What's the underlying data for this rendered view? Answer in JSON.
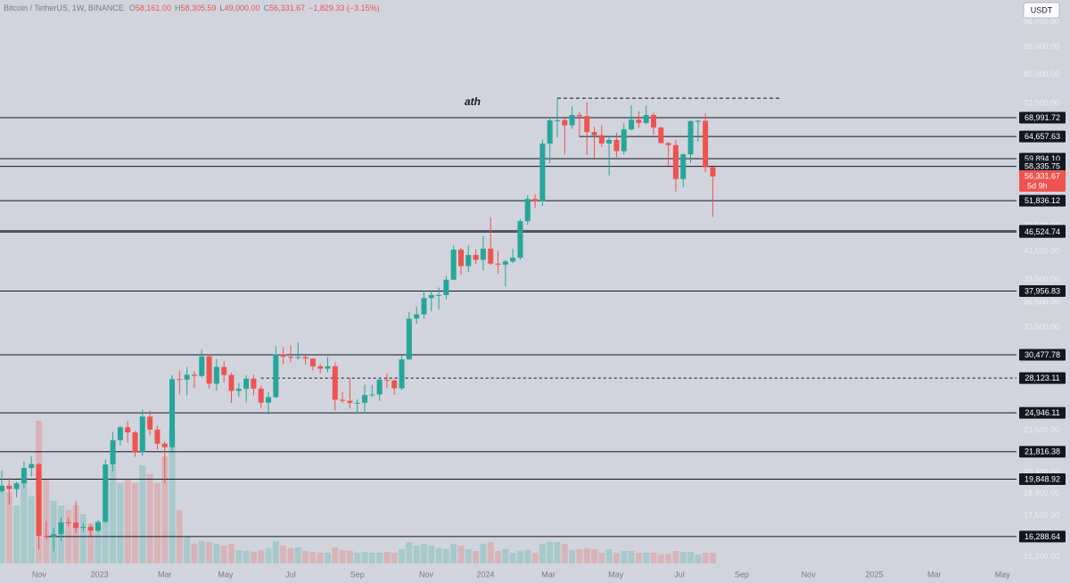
{
  "chart_data": {
    "type": "candlestick",
    "header": {
      "symbol": "Bitcoin / TetherUS, 1W, BINANCE",
      "ohlc": [
        {
          "label": "O",
          "value": "58,161.00"
        },
        {
          "label": "H",
          "value": "58,305.59"
        },
        {
          "label": "L",
          "value": "49,000.00"
        },
        {
          "label": "C",
          "value": "56,331.67"
        }
      ],
      "change": "−1,829.33 (−3.15%)"
    },
    "currency": "USDT",
    "log_scale": true,
    "grid": false,
    "up_color": "#26a69a",
    "down_color": "#ef5350",
    "level_color": "#131722",
    "open": [
      19044,
      19415,
      19185,
      19570,
      20625,
      20905,
      16330,
      16280,
      16425,
      17110,
      17090,
      16780,
      16840,
      16620,
      17130,
      20880,
      22710,
      23740,
      23320,
      21780,
      24630,
      23550,
      22430,
      22160,
      28030,
      27980,
      28450,
      28330,
      30300,
      27590,
      29230,
      28430,
      26910,
      27100,
      28070,
      27120,
      25840,
      26340,
      30530,
      30270,
      30170,
      30230,
      30080,
      29280,
      29050,
      29290,
      26100,
      26000,
      25830,
      25830,
      26530,
      26580,
      27970,
      27900,
      27150,
      29990,
      34520,
      35030,
      37060,
      37440,
      37450,
      39470,
      43790,
      41370,
      42990,
      42280,
      43920,
      41730,
      41580,
      42030,
      42580,
      48300,
      52140,
      51730,
      63110,
      68360,
      68390,
      67210,
      69650,
      69360,
      65660,
      64940,
      63120,
      63900,
      61480,
      66270,
      68510,
      67750,
      69650,
      66680,
      63210,
      62770,
      55850,
      60800,
      68160,
      68250,
      58161
    ],
    "high": [
      20475,
      19950,
      19700,
      21085,
      21475,
      21000,
      17190,
      16800,
      17425,
      17425,
      18390,
      17060,
      16970,
      17250,
      21260,
      23370,
      23820,
      24255,
      23450,
      25250,
      25130,
      23880,
      22600,
      28390,
      28870,
      29190,
      28800,
      31000,
      30490,
      30040,
      29820,
      28640,
      27650,
      28400,
      28450,
      27400,
      26800,
      31400,
      31280,
      31500,
      31820,
      30440,
      30090,
      29530,
      30250,
      29690,
      26800,
      28140,
      26130,
      27490,
      27480,
      28050,
      28580,
      28000,
      30400,
      35280,
      35980,
      38000,
      37980,
      38430,
      39980,
      44490,
      44050,
      44400,
      43830,
      45880,
      48970,
      43580,
      42250,
      43880,
      48600,
      52820,
      52990,
      64000,
      69000,
      73780,
      68920,
      71770,
      70330,
      72800,
      66870,
      67230,
      64730,
      65500,
      67700,
      71980,
      70600,
      71950,
      70200,
      66990,
      63370,
      63860,
      61000,
      68400,
      68500,
      70080,
      58305.59
    ],
    "low": [
      18960,
      18190,
      18650,
      19240,
      20050,
      15590,
      16130,
      15480,
      16020,
      16850,
      16500,
      16560,
      16330,
      16540,
      17080,
      20400,
      22300,
      22500,
      21450,
      21530,
      23100,
      21970,
      19550,
      21910,
      26600,
      26500,
      27200,
      28170,
      27130,
      26940,
      27680,
      25810,
      26360,
      25870,
      26500,
      25350,
      24800,
      26240,
      29500,
      29700,
      29960,
      29500,
      28860,
      28580,
      28700,
      25170,
      25800,
      25330,
      24900,
      24930,
      26370,
      26000,
      27200,
      26530,
      26970,
      29980,
      33900,
      34500,
      35400,
      35630,
      36890,
      39400,
      40190,
      40520,
      41650,
      40750,
      41500,
      40260,
      38550,
      41800,
      42260,
      47710,
      50520,
      50900,
      59000,
      64500,
      60760,
      66400,
      64500,
      60660,
      59600,
      62380,
      56550,
      60190,
      60750,
      66060,
      66600,
      67440,
      65050,
      63200,
      58400,
      53500,
      54260,
      59050,
      63500,
      57120,
      49000
    ],
    "close": [
      19415,
      19185,
      19570,
      20625,
      20905,
      16330,
      16280,
      16425,
      17110,
      17090,
      16780,
      16840,
      16620,
      17130,
      20880,
      22710,
      23740,
      23320,
      21780,
      24630,
      23550,
      22430,
      22160,
      28030,
      27980,
      28450,
      28330,
      30300,
      27590,
      29230,
      28430,
      26910,
      27100,
      28070,
      27120,
      25840,
      26340,
      30530,
      30270,
      30170,
      30230,
      30080,
      29280,
      29050,
      29290,
      26100,
      26000,
      25830,
      25830,
      26530,
      26580,
      27970,
      27900,
      27150,
      29990,
      34520,
      35030,
      37060,
      37440,
      37450,
      39470,
      43790,
      41370,
      42990,
      42280,
      43920,
      41730,
      41580,
      42030,
      42580,
      48300,
      52140,
      51730,
      63110,
      68360,
      68390,
      67210,
      69650,
      69360,
      65660,
      64940,
      63120,
      63900,
      61480,
      66270,
      68510,
      67750,
      69650,
      66680,
      63210,
      62770,
      55850,
      60800,
      68160,
      68250,
      58161,
      56331.67
    ],
    "volume": [
      1275000,
      1200000,
      975000,
      1425000,
      1125000,
      2400000,
      1425000,
      1050000,
      975000,
      900000,
      975000,
      825000,
      675000,
      675000,
      1425000,
      1650000,
      1350000,
      1425000,
      1350000,
      1650000,
      1500000,
      1350000,
      1800000,
      2250000,
      900000,
      450000,
      330000,
      375000,
      360000,
      330000,
      300000,
      330000,
      225000,
      210000,
      195000,
      225000,
      255000,
      375000,
      300000,
      255000,
      270000,
      210000,
      195000,
      180000,
      180000,
      270000,
      225000,
      210000,
      180000,
      195000,
      180000,
      180000,
      195000,
      180000,
      240000,
      360000,
      300000,
      330000,
      300000,
      255000,
      240000,
      330000,
      300000,
      240000,
      210000,
      330000,
      360000,
      210000,
      240000,
      180000,
      210000,
      225000,
      180000,
      330000,
      360000,
      360000,
      330000,
      225000,
      240000,
      255000,
      240000,
      180000,
      240000,
      180000,
      210000,
      210000,
      180000,
      180000,
      180000,
      150000,
      165000,
      210000,
      195000,
      195000,
      150000,
      180000,
      180000
    ],
    "xlim": [
      -0.24,
      137
    ],
    "ylim": [
      14850,
      103500
    ],
    "xticks": [
      {
        "value": 5.05,
        "label": "Nov"
      },
      {
        "value": 13.2,
        "label": "2023"
      },
      {
        "value": 22.0,
        "label": "Mar"
      },
      {
        "value": 30.2,
        "label": "May"
      },
      {
        "value": 39.0,
        "label": "Jul"
      },
      {
        "value": 48.0,
        "label": "Sep"
      },
      {
        "value": 57.3,
        "label": "Nov"
      },
      {
        "value": 65.3,
        "label": "2024"
      },
      {
        "value": 73.8,
        "label": "Mar"
      },
      {
        "value": 82.9,
        "label": "May"
      },
      {
        "value": 91.5,
        "label": "Jul"
      },
      {
        "value": 99.9,
        "label": "Sep"
      },
      {
        "value": 108.9,
        "label": "Nov"
      },
      {
        "value": 117.8,
        "label": "2025"
      },
      {
        "value": 125.9,
        "label": "Mar"
      },
      {
        "value": 135.1,
        "label": "May"
      }
    ],
    "yticks": [
      {
        "value": 96000,
        "label": "96,000.00"
      },
      {
        "value": 88000,
        "label": "88,000.00"
      },
      {
        "value": 80000,
        "label": "80,000.00"
      },
      {
        "value": 72500,
        "label": "72,500.00"
      },
      {
        "value": 47500,
        "label": "47,500.00"
      },
      {
        "value": 43500,
        "label": "43,500.00"
      },
      {
        "value": 39500,
        "label": "39,500.00"
      },
      {
        "value": 36500,
        "label": "36,500.00"
      },
      {
        "value": 33500,
        "label": "33,500.00"
      },
      {
        "value": 23500,
        "label": "23,500.00"
      },
      {
        "value": 20300,
        "label": "20,300.00"
      },
      {
        "value": 18900,
        "label": "18,900.00"
      },
      {
        "value": 17500,
        "label": "17,500.00"
      },
      {
        "value": 15200,
        "label": "15,200.00"
      }
    ],
    "levels": [
      {
        "value": 68991.72,
        "label": "68,991.72"
      },
      {
        "value": 64657.63,
        "label": "64,657.63",
        "from": 78
      },
      {
        "value": 59894.1,
        "label": "59,894.10"
      },
      {
        "value": 58335.75,
        "label": "58,335.75"
      },
      {
        "value": 51836.12,
        "label": "51,836.12"
      },
      {
        "value": 46721.74,
        "label": "46,721.74"
      },
      {
        "value": 46524.74,
        "label": "46,524.74"
      },
      {
        "value": 37956.83,
        "label": "37,956.83"
      },
      {
        "value": 30477.78,
        "label": "30,477.78"
      },
      {
        "value": 28123.11,
        "label": "28,123.11",
        "from": 35,
        "dashed": true
      },
      {
        "value": 24946.11,
        "label": "24,946.11"
      },
      {
        "value": 21816.38,
        "label": "21,816.38"
      },
      {
        "value": 19848.92,
        "label": "19,848.92"
      },
      {
        "value": 16288.64,
        "label": "16,288.64",
        "from": 6
      }
    ],
    "ath_line": {
      "value": 73780,
      "from": 75,
      "to": 105
    },
    "annotation": "ath",
    "last_price_label": "56,331.67",
    "countdown": "5d 9h"
  }
}
